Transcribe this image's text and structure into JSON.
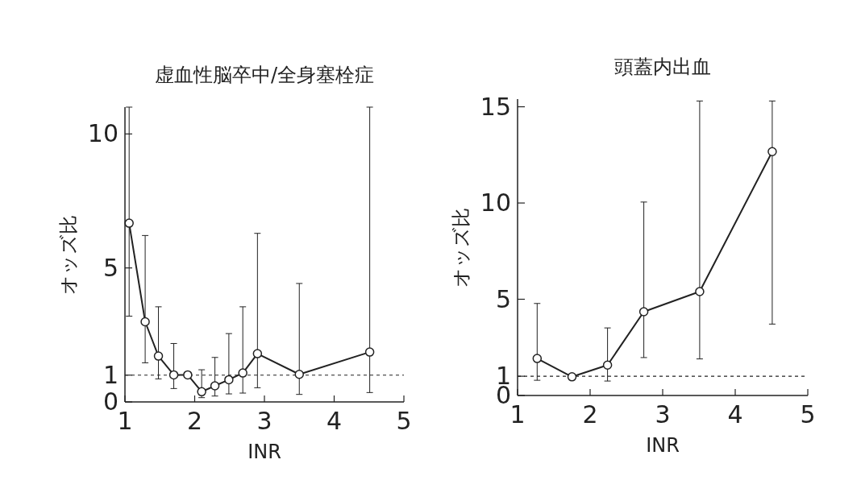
{
  "chart_data": [
    {
      "type": "line",
      "title": "虚血性脳卒中/全身塞栓症",
      "xlabel": "INR",
      "ylabel": "オッズ比",
      "color": "#222222",
      "marker": "circle",
      "line_style": "solid",
      "x": [
        1.06,
        1.29,
        1.48,
        1.7,
        1.9,
        2.1,
        2.29,
        2.49,
        2.69,
        2.9,
        3.5,
        4.51
      ],
      "values": [
        6.67,
        2.99,
        1.71,
        1.01,
        1.01,
        0.38,
        0.6,
        0.83,
        1.08,
        1.8,
        1.03,
        1.86
      ],
      "errors": [
        [
          3.2,
          11
        ],
        [
          1.46,
          6.21
        ],
        [
          0.86,
          3.55
        ],
        [
          0.5,
          2.18
        ],
        null,
        [
          0.16,
          1.2
        ],
        [
          0.22,
          1.66
        ],
        [
          0.3,
          2.55
        ],
        [
          0.33,
          3.55
        ],
        [
          0.53,
          6.29
        ],
        [
          0.28,
          4.42
        ],
        [
          0.35,
          11
        ]
      ],
      "xlim": [
        1,
        5
      ],
      "ylim": [
        0,
        11
      ],
      "xticks": [
        1,
        2,
        3,
        4,
        5
      ],
      "yticks": [
        0,
        1,
        5,
        10
      ],
      "ref_lines": [
        {
          "axis": "y",
          "value": 1,
          "line_style": "dashed"
        }
      ]
    },
    {
      "type": "line",
      "title": "頭蓋内出血",
      "xlabel": "INR",
      "ylabel": "オッズ比",
      "color": "#222222",
      "marker": "circle",
      "line_style": "solid",
      "x": [
        1.27,
        1.75,
        2.24,
        2.74,
        3.51,
        4.51
      ],
      "values": [
        1.92,
        0.97,
        1.58,
        4.35,
        5.4,
        12.67
      ],
      "errors": [
        [
          0.79,
          4.78
        ],
        null,
        [
          0.75,
          3.51
        ],
        [
          1.97,
          10.05
        ],
        [
          1.9,
          15.3
        ],
        [
          3.71,
          15.3
        ]
      ],
      "xlim": [
        1,
        5
      ],
      "ylim": [
        0,
        15.4
      ],
      "xticks": [
        1,
        2,
        3,
        4,
        5
      ],
      "yticks": [
        0,
        1,
        5,
        10,
        15
      ],
      "ref_lines": [
        {
          "axis": "y",
          "value": 1,
          "line_style": "dashed"
        }
      ]
    }
  ]
}
